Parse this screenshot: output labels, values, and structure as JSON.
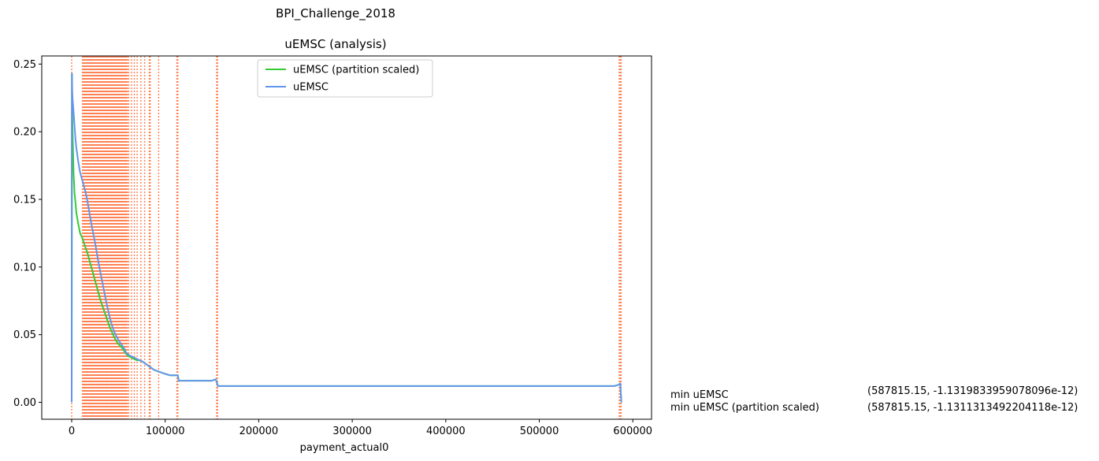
{
  "chart_data": {
    "type": "line",
    "suptitle": "BPI_Challenge_2018",
    "title": "uEMSC (analysis)",
    "xlabel": "payment_actual0",
    "ylabel": "",
    "xlim": [
      -32000,
      620000
    ],
    "ylim": [
      -0.0125,
      0.256
    ],
    "xticks": [
      0,
      100000,
      200000,
      300000,
      400000,
      500000,
      600000
    ],
    "xtick_labels": [
      "0",
      "100000",
      "200000",
      "300000",
      "400000",
      "500000",
      "600000"
    ],
    "yticks": [
      0.0,
      0.05,
      0.1,
      0.15,
      0.2,
      0.25
    ],
    "ytick_labels": [
      "0.00",
      "0.05",
      "0.10",
      "0.15",
      "0.20",
      "0.25"
    ],
    "legend_position": "upper-center",
    "grid": false,
    "series": [
      {
        "name": "uEMSC (partition scaled)",
        "color": "#32cd32",
        "x": [
          0,
          300,
          600,
          1000,
          2000,
          3000,
          4000,
          5000,
          7000,
          9000,
          11000,
          13000,
          15000,
          17000,
          19000,
          21000,
          23000,
          25000,
          27000,
          29000,
          31000,
          33000,
          35000,
          37000,
          39000,
          41000,
          43000,
          45000,
          47000,
          50000,
          53000,
          56000,
          58000,
          61000,
          64000,
          67000,
          70000,
          73000,
          76000,
          80000,
          84000,
          88000,
          92000,
          96000,
          100000,
          105000,
          110000,
          113500,
          114500,
          130000,
          150000,
          154000,
          156500,
          200000,
          300000,
          400000,
          500000,
          570000,
          580000,
          585000,
          586500,
          587500,
          587815.15
        ],
        "y": [
          0.0,
          0.243,
          0.215,
          0.2,
          0.17,
          0.155,
          0.148,
          0.14,
          0.132,
          0.125,
          0.122,
          0.118,
          0.114,
          0.11,
          0.105,
          0.1,
          0.095,
          0.09,
          0.085,
          0.08,
          0.075,
          0.071,
          0.067,
          0.063,
          0.059,
          0.055,
          0.052,
          0.049,
          0.046,
          0.043,
          0.041,
          0.038,
          0.036,
          0.034,
          0.033,
          0.032,
          0.031,
          0.031,
          0.03,
          0.028,
          0.026,
          0.024,
          0.023,
          0.022,
          0.021,
          0.02,
          0.02,
          0.02,
          0.016,
          0.016,
          0.016,
          0.017,
          0.012,
          0.012,
          0.012,
          0.012,
          0.012,
          0.012,
          0.012,
          0.013,
          0.014,
          0.003,
          0.0
        ]
      },
      {
        "name": "uEMSC",
        "color": "#6495ed",
        "x": [
          0,
          300,
          600,
          1000,
          2000,
          3000,
          4000,
          5000,
          7000,
          9000,
          11000,
          13000,
          15000,
          17000,
          19000,
          21000,
          23000,
          25000,
          27000,
          29000,
          31000,
          33000,
          35000,
          37000,
          39000,
          41000,
          43000,
          45000,
          47000,
          50000,
          53000,
          56000,
          58000,
          61000,
          64000,
          67000,
          70000,
          73000,
          76000,
          80000,
          84000,
          88000,
          92000,
          96000,
          100000,
          105000,
          110000,
          113500,
          114500,
          130000,
          150000,
          154000,
          156500,
          200000,
          300000,
          400000,
          500000,
          570000,
          580000,
          585000,
          586500,
          587500,
          587815.15
        ],
        "y": [
          0.0,
          0.243,
          0.23,
          0.224,
          0.215,
          0.205,
          0.195,
          0.188,
          0.178,
          0.17,
          0.165,
          0.16,
          0.155,
          0.148,
          0.14,
          0.132,
          0.125,
          0.118,
          0.11,
          0.102,
          0.095,
          0.088,
          0.081,
          0.074,
          0.068,
          0.062,
          0.057,
          0.053,
          0.05,
          0.046,
          0.043,
          0.04,
          0.037,
          0.035,
          0.034,
          0.033,
          0.032,
          0.031,
          0.03,
          0.028,
          0.026,
          0.024,
          0.023,
          0.022,
          0.021,
          0.02,
          0.02,
          0.02,
          0.016,
          0.016,
          0.016,
          0.017,
          0.012,
          0.012,
          0.012,
          0.012,
          0.012,
          0.012,
          0.012,
          0.013,
          0.014,
          0.003,
          0.0
        ]
      }
    ],
    "partition_lines": {
      "color": "#ff7f50",
      "style": "dotted",
      "x": [
        0,
        11500,
        12500,
        13500,
        14500,
        15500,
        16500,
        17500,
        18500,
        19500,
        20500,
        21500,
        22500,
        23500,
        24500,
        25500,
        26500,
        27500,
        28500,
        29500,
        30500,
        31500,
        32500,
        33500,
        34500,
        35500,
        36500,
        37500,
        38500,
        39500,
        40500,
        41500,
        42500,
        43500,
        44500,
        45500,
        46500,
        47500,
        48500,
        49500,
        50500,
        51500,
        52500,
        53500,
        54500,
        55500,
        56500,
        57500,
        58500,
        59500,
        61000,
        64000,
        67000,
        70000,
        74000,
        78000,
        83000,
        84000,
        93000,
        112500,
        113500,
        155000,
        156000,
        585500,
        586500,
        587500
      ]
    },
    "annotations": [
      {
        "label": "min uEMSC",
        "value": "(587815.15, -1.1319833959078096e-12)"
      },
      {
        "label": "min uEMSC (partition scaled)",
        "value": "(587815.15, -1.1311313492204118e-12)"
      }
    ]
  }
}
